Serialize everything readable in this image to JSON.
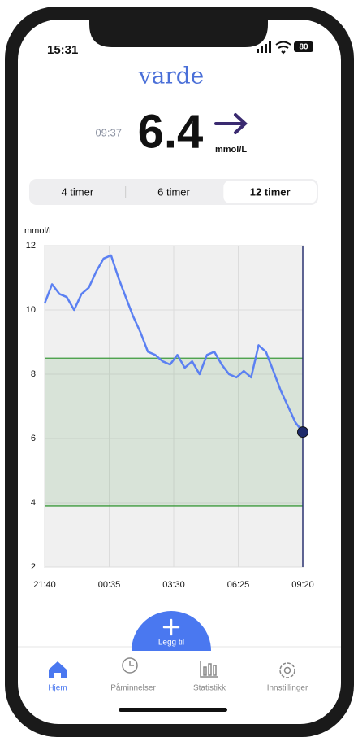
{
  "status": {
    "time": "15:31",
    "battery": "80"
  },
  "app": {
    "title": "varde"
  },
  "reading": {
    "time": "09:37",
    "value": "6.4",
    "unit": "mmol/L"
  },
  "tabs": [
    {
      "label": "4 timer",
      "active": false
    },
    {
      "label": "6 timer",
      "active": false
    },
    {
      "label": "12 timer",
      "active": true
    }
  ],
  "chart_data": {
    "type": "line",
    "ylabel": "mmol/L",
    "color": "#5b80f2",
    "x": [
      "21:40",
      "22:00",
      "22:20",
      "22:40",
      "23:00",
      "23:20",
      "23:40",
      "00:00",
      "00:20",
      "00:40",
      "01:00",
      "01:20",
      "01:40",
      "02:00",
      "02:20",
      "02:40",
      "03:00",
      "03:20",
      "03:40",
      "04:00",
      "04:20",
      "04:40",
      "05:00",
      "05:20",
      "05:40",
      "06:00",
      "06:20",
      "06:40",
      "07:00",
      "07:20",
      "07:40",
      "08:00",
      "08:20",
      "08:40",
      "09:00",
      "09:20"
    ],
    "values": [
      10.2,
      10.8,
      10.5,
      10.4,
      10.0,
      10.5,
      10.7,
      11.2,
      11.6,
      11.7,
      11.0,
      10.4,
      9.8,
      9.3,
      8.7,
      8.6,
      8.4,
      8.3,
      8.6,
      8.2,
      8.4,
      8.0,
      8.6,
      8.7,
      8.3,
      8.0,
      7.9,
      8.1,
      7.9,
      8.9,
      8.7,
      8.1,
      7.5,
      7.0,
      6.5,
      6.2
    ],
    "xticks": [
      "21:40",
      "00:35",
      "03:30",
      "06:25",
      "09:20"
    ],
    "ylim": [
      2,
      12
    ],
    "yticks": [
      2,
      4,
      6,
      8,
      10,
      12
    ],
    "target_range": [
      3.9,
      8.5
    ],
    "grid": true
  },
  "fab": {
    "label": "Legg til"
  },
  "nav": [
    {
      "label": "Hjem",
      "active": true
    },
    {
      "label": "Påminnelser",
      "active": false
    },
    {
      "label": "Statistikk",
      "active": false
    },
    {
      "label": "Innstillinger",
      "active": false
    }
  ]
}
